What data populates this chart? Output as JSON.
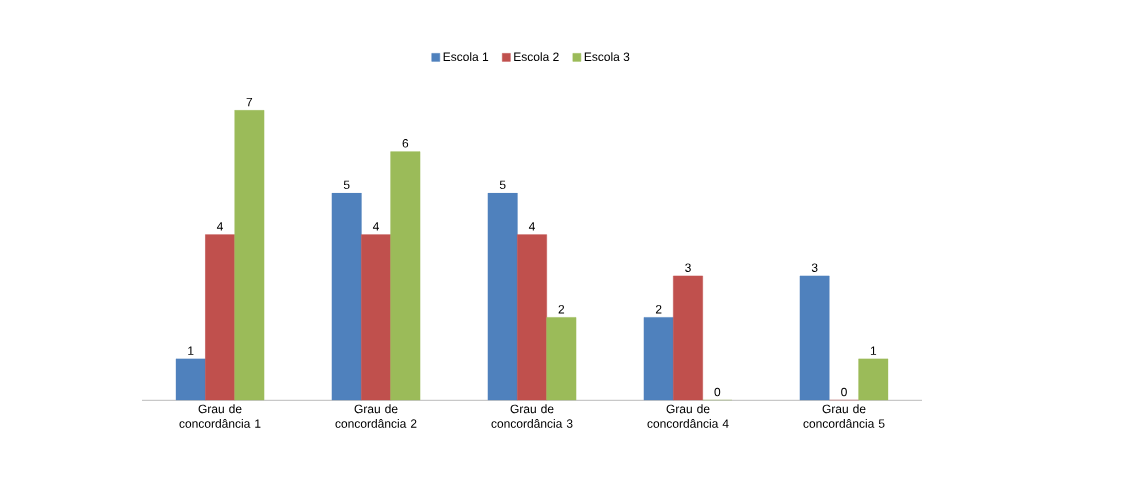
{
  "chart_data": {
    "type": "bar",
    "categories": [
      "Grau de concordância 1",
      "Grau de concordância 2",
      "Grau de concordância 3",
      "Grau de concordância 4",
      "Grau de concordância 5"
    ],
    "series": [
      {
        "name": "Escola 1",
        "color": "#4f81bd",
        "values": [
          1,
          5,
          5,
          2,
          3
        ]
      },
      {
        "name": "Escola 2",
        "color": "#c0504d",
        "values": [
          4,
          4,
          4,
          3,
          0
        ]
      },
      {
        "name": "Escola 3",
        "color": "#9bbb59",
        "values": [
          7,
          6,
          2,
          0,
          1
        ]
      }
    ],
    "legend": "top",
    "data_labels": true
  }
}
